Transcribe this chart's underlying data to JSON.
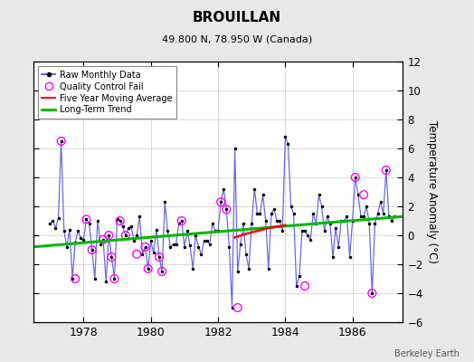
{
  "title": "BROUILLAN",
  "subtitle": "49.800 N, 78.950 W (Canada)",
  "ylabel": "Temperature Anomaly (°C)",
  "credit": "Berkeley Earth",
  "ylim": [
    -6,
    12
  ],
  "xlim": [
    1976.5,
    1987.5
  ],
  "yticks": [
    -6,
    -4,
    -2,
    0,
    2,
    4,
    6,
    8,
    10,
    12
  ],
  "xticks": [
    1978,
    1980,
    1982,
    1984,
    1986
  ],
  "bg_color": "#e8e8e8",
  "plot_bg_color": "#ffffff",
  "raw_x": [
    1977.0,
    1977.083,
    1977.167,
    1977.25,
    1977.333,
    1977.417,
    1977.5,
    1977.583,
    1977.667,
    1977.75,
    1977.833,
    1977.917,
    1978.0,
    1978.083,
    1978.167,
    1978.25,
    1978.333,
    1978.417,
    1978.5,
    1978.583,
    1978.667,
    1978.75,
    1978.833,
    1978.917,
    1979.0,
    1979.083,
    1979.167,
    1979.25,
    1979.333,
    1979.417,
    1979.5,
    1979.583,
    1979.667,
    1979.75,
    1979.833,
    1979.917,
    1980.0,
    1980.083,
    1980.167,
    1980.25,
    1980.333,
    1980.417,
    1980.5,
    1980.583,
    1980.667,
    1980.75,
    1980.833,
    1980.917,
    1981.0,
    1981.083,
    1981.167,
    1981.25,
    1981.333,
    1981.417,
    1981.5,
    1981.583,
    1981.667,
    1981.75,
    1981.833,
    1981.917,
    1982.0,
    1982.083,
    1982.167,
    1982.25,
    1982.333,
    1982.417,
    1982.5,
    1982.583,
    1982.667,
    1982.75,
    1982.833,
    1982.917,
    1983.0,
    1983.083,
    1983.167,
    1983.25,
    1983.333,
    1983.417,
    1983.5,
    1983.583,
    1983.667,
    1983.75,
    1983.833,
    1983.917,
    1984.0,
    1984.083,
    1984.167,
    1984.25,
    1984.333,
    1984.417,
    1984.5,
    1984.583,
    1984.667,
    1984.75,
    1984.833,
    1984.917,
    1985.0,
    1985.083,
    1985.167,
    1985.25,
    1985.333,
    1985.417,
    1985.5,
    1985.583,
    1985.667,
    1985.75,
    1985.833,
    1985.917,
    1986.0,
    1986.083,
    1986.167,
    1986.25,
    1986.333,
    1986.417,
    1986.5,
    1986.583,
    1986.667,
    1986.75,
    1986.833,
    1986.917,
    1987.0,
    1987.083,
    1987.167,
    1987.25
  ],
  "raw_y": [
    0.8,
    1.0,
    0.5,
    1.2,
    6.5,
    0.3,
    -0.8,
    0.4,
    -3.0,
    -0.5,
    0.3,
    -0.2,
    -0.3,
    1.1,
    0.8,
    -1.0,
    -3.0,
    1.0,
    -0.6,
    -0.3,
    -3.2,
    0.0,
    -1.5,
    -3.0,
    1.1,
    1.0,
    0.6,
    0.0,
    0.5,
    0.6,
    -0.4,
    0.0,
    1.3,
    -1.3,
    -0.8,
    -2.3,
    -0.4,
    -1.2,
    0.4,
    -1.5,
    -2.5,
    2.3,
    0.3,
    -0.8,
    -0.6,
    -0.6,
    0.8,
    1.0,
    -0.8,
    0.3,
    -0.7,
    -2.3,
    0.0,
    -0.8,
    -1.3,
    -0.4,
    -0.4,
    -0.6,
    0.8,
    0.3,
    0.3,
    2.3,
    3.2,
    1.8,
    -0.8,
    -5.0,
    6.0,
    -2.5,
    -0.6,
    0.8,
    -1.3,
    -2.3,
    0.8,
    3.2,
    1.5,
    1.5,
    2.8,
    1.0,
    -2.3,
    1.5,
    1.8,
    1.0,
    1.0,
    0.3,
    6.8,
    6.3,
    2.0,
    1.5,
    -3.5,
    -2.8,
    0.3,
    0.3,
    0.0,
    -0.3,
    1.5,
    0.8,
    2.8,
    2.0,
    0.3,
    1.3,
    0.8,
    -1.5,
    0.5,
    -0.8,
    1.0,
    1.0,
    1.3,
    -1.5,
    1.0,
    4.0,
    2.8,
    1.3,
    1.3,
    2.0,
    0.8,
    -4.0,
    0.8,
    1.5,
    2.3,
    1.5,
    4.5,
    1.3,
    1.0,
    1.3
  ],
  "qc_fail_x": [
    1977.333,
    1977.75,
    1978.083,
    1978.25,
    1978.583,
    1978.75,
    1978.833,
    1978.917,
    1979.083,
    1979.25,
    1979.583,
    1979.833,
    1979.917,
    1980.25,
    1980.333,
    1980.917,
    1982.083,
    1982.25,
    1982.583,
    1984.583,
    1986.083,
    1986.333,
    1986.583,
    1987.0
  ],
  "qc_fail_y": [
    6.5,
    -3.0,
    1.1,
    -1.0,
    -0.3,
    0.0,
    -1.5,
    -3.0,
    1.0,
    0.0,
    -1.3,
    -0.8,
    -2.3,
    -1.5,
    -2.5,
    1.0,
    2.3,
    1.8,
    -5.0,
    -3.5,
    4.0,
    2.8,
    -4.0,
    4.5
  ],
  "trend_x": [
    1976.5,
    1987.5
  ],
  "trend_y": [
    -0.8,
    1.3
  ],
  "moving_avg_x": [
    1982.5,
    1982.75,
    1983.0,
    1983.25,
    1983.5,
    1983.75,
    1984.0
  ],
  "moving_avg_y": [
    -0.15,
    0.05,
    0.2,
    0.35,
    0.5,
    0.6,
    0.7
  ]
}
